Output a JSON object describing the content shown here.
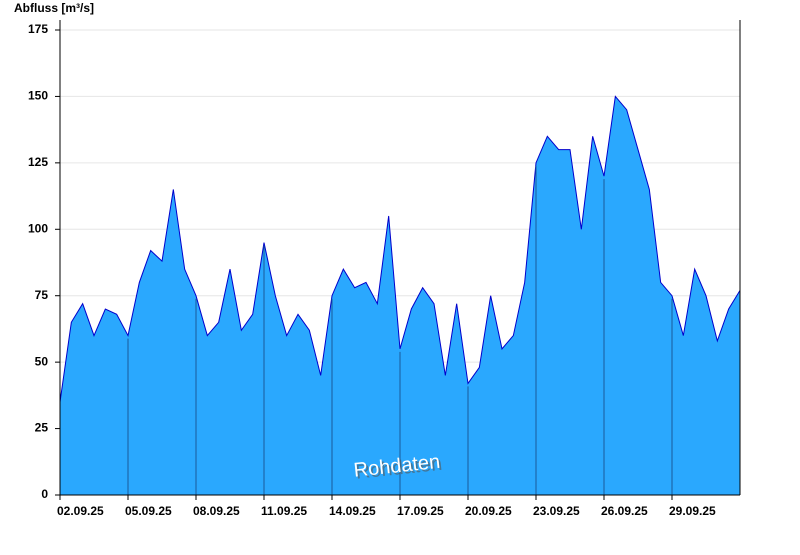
{
  "chart_data": {
    "type": "area",
    "y_label": "Abfluss [m³/s]",
    "annotation": "Rohdaten",
    "x": [
      0,
      0.5,
      1,
      1.5,
      2,
      2.5,
      3,
      3.5,
      4,
      4.5,
      5,
      5.5,
      6,
      6.5,
      7,
      7.5,
      8,
      8.5,
      9,
      9.5,
      10,
      10.5,
      11,
      11.5,
      12,
      12.5,
      13,
      13.5,
      14,
      14.5,
      15,
      15.5,
      16,
      16.5,
      17,
      17.5,
      18,
      18.5,
      19,
      19.5,
      20,
      20.5,
      21,
      21.5,
      22,
      22.5,
      23,
      23.5,
      24,
      24.5,
      25,
      25.5,
      26,
      26.5,
      27,
      27.5,
      28,
      28.5,
      29,
      29.5,
      30
    ],
    "series": [
      {
        "name": "Abfluss",
        "color": "#2aa8fe",
        "line_color": "#0000cc",
        "values": [
          35,
          65,
          72,
          60,
          70,
          68,
          60,
          80,
          92,
          88,
          115,
          85,
          75,
          60,
          65,
          85,
          62,
          68,
          95,
          75,
          60,
          68,
          62,
          45,
          75,
          85,
          78,
          80,
          72,
          105,
          55,
          70,
          78,
          72,
          45,
          72,
          42,
          48,
          75,
          55,
          60,
          80,
          125,
          135,
          130,
          130,
          100,
          135,
          120,
          150,
          145,
          130,
          115,
          80,
          75,
          60,
          85,
          75,
          58,
          70,
          77
        ]
      }
    ],
    "xlim": [
      0,
      30
    ],
    "xticks": [
      {
        "value": 0,
        "label": "02.09.25"
      },
      {
        "value": 3,
        "label": "05.09.25"
      },
      {
        "value": 6,
        "label": "08.09.25"
      },
      {
        "value": 9,
        "label": "11.09.25"
      },
      {
        "value": 12,
        "label": "14.09.25"
      },
      {
        "value": 15,
        "label": "17.09.25"
      },
      {
        "value": 18,
        "label": "20.09.25"
      },
      {
        "value": 21,
        "label": "23.09.25"
      },
      {
        "value": 24,
        "label": "26.09.25"
      },
      {
        "value": 27,
        "label": "29.09.25"
      }
    ],
    "ylim": [
      0,
      175
    ],
    "yticks": [
      0,
      25,
      50,
      75,
      100,
      125,
      150,
      175
    ],
    "grid": true
  }
}
